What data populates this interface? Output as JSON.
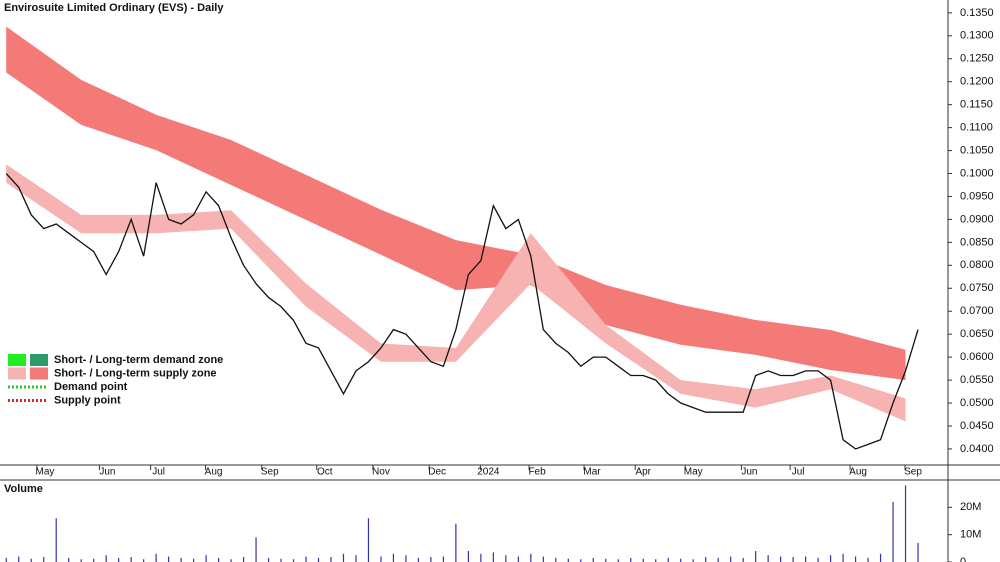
{
  "chart_data": [
    {
      "type": "line",
      "title": "Envirosuite Limited Ordinary (EVS) - Daily",
      "color": "#111111",
      "values": [
        0.1,
        0.097,
        0.091,
        0.088,
        0.089,
        0.087,
        0.085,
        0.083,
        0.078,
        0.083,
        0.09,
        0.082,
        0.098,
        0.09,
        0.089,
        0.091,
        0.096,
        0.093,
        0.086,
        0.08,
        0.076,
        0.073,
        0.071,
        0.068,
        0.063,
        0.062,
        0.057,
        0.052,
        0.057,
        0.059,
        0.062,
        0.066,
        0.065,
        0.062,
        0.059,
        0.058,
        0.066,
        0.078,
        0.081,
        0.093,
        0.088,
        0.09,
        0.082,
        0.066,
        0.063,
        0.061,
        0.058,
        0.06,
        0.06,
        0.058,
        0.056,
        0.056,
        0.055,
        0.052,
        0.05,
        0.049,
        0.048,
        0.048,
        0.048,
        0.048,
        0.056,
        0.057,
        0.056,
        0.056,
        0.057,
        0.057,
        0.055,
        0.042,
        0.04,
        0.041,
        0.042,
        0.05,
        0.057,
        0.066
      ],
      "bands": [
        {
          "color": "#f47a78",
          "x": [
            0,
            6,
            12,
            18,
            24,
            30,
            36,
            42,
            48,
            54,
            60,
            66,
            72
          ],
          "upper": [
            0.132,
            0.1204,
            0.1128,
            0.1073,
            0.0997,
            0.0921,
            0.0855,
            0.0823,
            0.0757,
            0.0714,
            0.0681,
            0.0659,
            0.0616
          ],
          "lower": [
            0.122,
            0.1106,
            0.1051,
            0.0975,
            0.0899,
            0.0823,
            0.0746,
            0.0757,
            0.067,
            0.0627,
            0.0605,
            0.0572,
            0.055
          ]
        },
        {
          "color": "#f6b3b1",
          "x": [
            0,
            6,
            12,
            18,
            24,
            30,
            36,
            42,
            48,
            54,
            60,
            66,
            72
          ],
          "upper": [
            0.102,
            0.091,
            0.091,
            0.092,
            0.076,
            0.063,
            0.062,
            0.087,
            0.067,
            0.055,
            0.053,
            0.056,
            0.051
          ],
          "lower": [
            0.098,
            0.087,
            0.087,
            0.088,
            0.071,
            0.059,
            0.059,
            0.076,
            0.063,
            0.052,
            0.049,
            0.053,
            0.046
          ]
        }
      ],
      "xlim": [
        -0.5,
        75.4
      ],
      "xticks": [
        {
          "value": 3.1,
          "label": "May"
        },
        {
          "value": 8.1,
          "label": "Jun"
        },
        {
          "value": 12.2,
          "label": "Jul"
        },
        {
          "value": 16.6,
          "label": "Aug"
        },
        {
          "value": 21.1,
          "label": "Sep"
        },
        {
          "value": 25.5,
          "label": "Oct"
        },
        {
          "value": 30,
          "label": "Nov"
        },
        {
          "value": 34.5,
          "label": "Dec"
        },
        {
          "value": 38.6,
          "label": "2024"
        },
        {
          "value": 42.5,
          "label": "Feb"
        },
        {
          "value": 46.9,
          "label": "Mar"
        },
        {
          "value": 51,
          "label": "Apr"
        },
        {
          "value": 55,
          "label": "May"
        },
        {
          "value": 59.5,
          "label": "Jun"
        },
        {
          "value": 63.4,
          "label": "Jul"
        },
        {
          "value": 68.2,
          "label": "Aug"
        },
        {
          "value": 72.6,
          "label": "Sep"
        }
      ],
      "ylim": [
        0.0365,
        0.1378
      ],
      "yticks": [
        {
          "value": 0.04,
          "label": "0.0400"
        },
        {
          "value": 0.045,
          "label": "0.0450"
        },
        {
          "value": 0.05,
          "label": "0.0500"
        },
        {
          "value": 0.055,
          "label": "0.0550"
        },
        {
          "value": 0.06,
          "label": "0.0600"
        },
        {
          "value": 0.065,
          "label": "0.0650"
        },
        {
          "value": 0.07,
          "label": "0.0700"
        },
        {
          "value": 0.075,
          "label": "0.0750"
        },
        {
          "value": 0.08,
          "label": "0.0800"
        },
        {
          "value": 0.085,
          "label": "0.0850"
        },
        {
          "value": 0.09,
          "label": "0.0900"
        },
        {
          "value": 0.095,
          "label": "0.0950"
        },
        {
          "value": 0.1,
          "label": "0.1000"
        },
        {
          "value": 0.105,
          "label": "0.1050"
        },
        {
          "value": 0.11,
          "label": "0.1100"
        },
        {
          "value": 0.115,
          "label": "0.1150"
        },
        {
          "value": 0.12,
          "label": "0.1200"
        },
        {
          "value": 0.125,
          "label": "0.1250"
        },
        {
          "value": 0.13,
          "label": "0.1300"
        },
        {
          "value": 0.135,
          "label": "0.1350"
        }
      ],
      "legend": [
        {
          "label": "Short- / Long-term demand zone",
          "colors": [
            "#22ee22",
            "#2e9a6a"
          ]
        },
        {
          "label": "Short- / Long-term supply zone",
          "colors": [
            "#f6b3b1",
            "#f47a78"
          ]
        },
        {
          "label": "Demand point",
          "colors": [
            "#22cc22"
          ]
        },
        {
          "label": "Supply point",
          "colors": [
            "#dd2222"
          ]
        }
      ]
    },
    {
      "type": "bar",
      "title": "Volume",
      "color": "#3333aa",
      "values": [
        1500000,
        2000000,
        1200000,
        1800000,
        16000000,
        1500000,
        1000000,
        1200000,
        2500000,
        1500000,
        1800000,
        1000000,
        3000000,
        2000000,
        1500000,
        1200000,
        2500000,
        1500000,
        1000000,
        1800000,
        9000000,
        1500000,
        1200000,
        1000000,
        2000000,
        1500000,
        1800000,
        3000000,
        2500000,
        16000000,
        2000000,
        3000000,
        2500000,
        1500000,
        1800000,
        2000000,
        14000000,
        4000000,
        3000000,
        3500000,
        2500000,
        2000000,
        3000000,
        2000000,
        1500000,
        1200000,
        1000000,
        1500000,
        1200000,
        1000000,
        1500000,
        1200000,
        1000000,
        1500000,
        1200000,
        1000000,
        1800000,
        1500000,
        2000000,
        1500000,
        4000000,
        2500000,
        2000000,
        1800000,
        2000000,
        1500000,
        2500000,
        3000000,
        2000000,
        1500000,
        3000000,
        22000000,
        28000000,
        7000000
      ],
      "xlim": [
        -0.5,
        75.4
      ],
      "ylim": [
        0,
        30000000
      ],
      "yticks": [
        0,
        {
          "value": 10000000,
          "label": "10M"
        },
        {
          "value": 20000000,
          "label": "20M"
        }
      ]
    }
  ]
}
